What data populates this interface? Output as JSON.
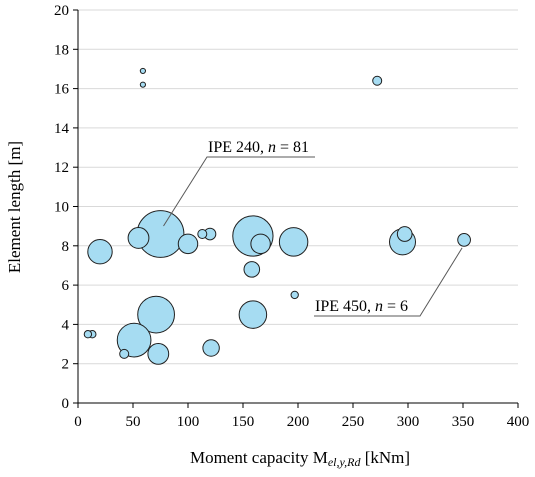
{
  "chart_data": {
    "type": "scatter",
    "xlabel_main": "Moment capacity M",
    "xlabel_sub": "el,y,Rd",
    "xlabel_unit": " [kNm]",
    "ylabel": "Element length [m]",
    "xlim": [
      0,
      400
    ],
    "ylim": [
      0,
      20
    ],
    "xticks": [
      0,
      50,
      100,
      150,
      200,
      250,
      300,
      350,
      400
    ],
    "yticks": [
      0,
      2,
      4,
      6,
      8,
      10,
      12,
      14,
      16,
      18,
      20
    ],
    "grid": "horizontal",
    "colors": {
      "bubble_fill": "#a6dcf2",
      "bubble_stroke": "#1f1f1f",
      "grid": "#d9d9d9"
    },
    "points": [
      {
        "x": 75,
        "y": 8.6,
        "n": 81
      },
      {
        "x": 159,
        "y": 8.5,
        "n": 60
      },
      {
        "x": 71,
        "y": 4.5,
        "n": 50
      },
      {
        "x": 51,
        "y": 3.2,
        "n": 42
      },
      {
        "x": 196,
        "y": 8.2,
        "n": 30
      },
      {
        "x": 159,
        "y": 4.5,
        "n": 28
      },
      {
        "x": 295,
        "y": 8.2,
        "n": 25
      },
      {
        "x": 20,
        "y": 7.7,
        "n": 22
      },
      {
        "x": 55,
        "y": 8.4,
        "n": 16
      },
      {
        "x": 73,
        "y": 2.5,
        "n": 16
      },
      {
        "x": 100,
        "y": 8.1,
        "n": 14
      },
      {
        "x": 166,
        "y": 8.1,
        "n": 14
      },
      {
        "x": 121,
        "y": 2.8,
        "n": 10
      },
      {
        "x": 158,
        "y": 6.8,
        "n": 9
      },
      {
        "x": 297,
        "y": 8.6,
        "n": 8
      },
      {
        "x": 351,
        "y": 8.3,
        "n": 6
      },
      {
        "x": 120,
        "y": 8.6,
        "n": 5
      },
      {
        "x": 113,
        "y": 8.6,
        "n": 3
      },
      {
        "x": 272,
        "y": 16.4,
        "n": 3
      },
      {
        "x": 42,
        "y": 2.5,
        "n": 3
      },
      {
        "x": 13,
        "y": 3.5,
        "n": 2
      },
      {
        "x": 9,
        "y": 3.5,
        "n": 2
      },
      {
        "x": 197,
        "y": 5.5,
        "n": 2
      },
      {
        "x": 59,
        "y": 16.9,
        "n": 1
      },
      {
        "x": 59,
        "y": 16.2,
        "n": 1
      }
    ],
    "annotations": [
      {
        "text_prefix": "IPE 240, ",
        "text_var": "n",
        "text_suffix": " = 81",
        "target_x": 75,
        "target_y": 8.6
      },
      {
        "text_prefix": "IPE 450, ",
        "text_var": "n",
        "text_suffix": " = 6",
        "target_x": 351,
        "target_y": 8.3
      }
    ]
  }
}
